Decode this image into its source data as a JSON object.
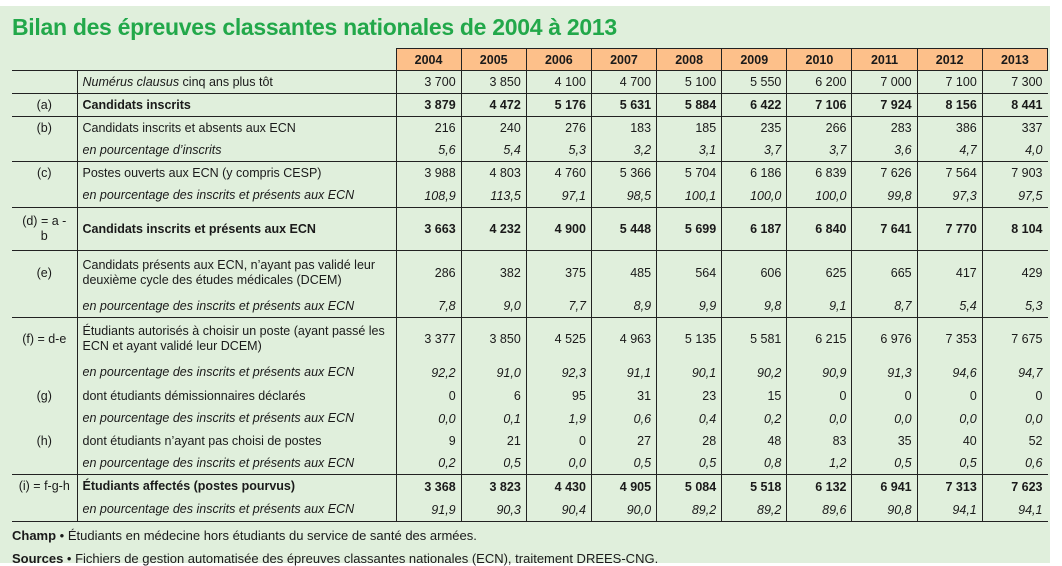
{
  "title": "Bilan des épreuves classantes nationales de 2004 à 2013",
  "years": [
    "2004",
    "2005",
    "2006",
    "2007",
    "2008",
    "2009",
    "2010",
    "2011",
    "2012",
    "2013"
  ],
  "rows": [
    {
      "label": "",
      "desc": "Numérus clausus cinq ans plus tôt",
      "style": "mixed",
      "values": [
        "3 700",
        "3 850",
        "4 100",
        "4 700",
        "5 100",
        "5 550",
        "6 200",
        "7 000",
        "7 100",
        "7 300"
      ]
    },
    {
      "label": "(a)",
      "desc": "Candidats inscrits",
      "style": "bold",
      "values": [
        "3 879",
        "4 472",
        "5 176",
        "5 631",
        "5 884",
        "6 422",
        "7 106",
        "7 924",
        "8 156",
        "8 441"
      ]
    },
    {
      "label": "(b)",
      "desc": "Candidats inscrits et absents aux ECN",
      "style": "normal",
      "values": [
        "216",
        "240",
        "276",
        "183",
        "185",
        "235",
        "266",
        "283",
        "386",
        "337"
      ]
    },
    {
      "label": "",
      "desc": "en pourcentage d’inscrits",
      "style": "ital",
      "values": [
        "5,6",
        "5,4",
        "5,3",
        "3,2",
        "3,1",
        "3,7",
        "3,7",
        "3,6",
        "4,7",
        "4,0"
      ]
    },
    {
      "label": "(c)",
      "desc": "Postes ouverts aux ECN (y compris CESP)",
      "style": "normal",
      "values": [
        "3 988",
        "4 803",
        "4 760",
        "5 366",
        "5 704",
        "6 186",
        "6 839",
        "7 626",
        "7 564",
        "7 903"
      ]
    },
    {
      "label": "",
      "desc": "en pourcentage des inscrits et présents aux ECN",
      "style": "ital",
      "values": [
        "108,9",
        "113,5",
        "97,1",
        "98,5",
        "100,1",
        "100,0",
        "100,0",
        "99,8",
        "97,3",
        "97,5"
      ]
    },
    {
      "label": "(d) = a - b",
      "desc": "Candidats inscrits et présents aux ECN",
      "style": "bold",
      "values": [
        "3 663",
        "4 232",
        "4 900",
        "5 448",
        "5 699",
        "6 187",
        "6 840",
        "7 641",
        "7 770",
        "8 104"
      ]
    },
    {
      "label": "(e)",
      "desc": "Candidats présents aux ECN, n’ayant pas validé leur deuxième cycle des études médicales (DCEM)",
      "style": "normal",
      "values": [
        "286",
        "382",
        "375",
        "485",
        "564",
        "606",
        "625",
        "665",
        "417",
        "429"
      ]
    },
    {
      "label": "",
      "desc": "en pourcentage des inscrits et présents aux ECN",
      "style": "ital",
      "values": [
        "7,8",
        "9,0",
        "7,7",
        "8,9",
        "9,9",
        "9,8",
        "9,1",
        "8,7",
        "5,4",
        "5,3"
      ]
    },
    {
      "label": "(f) = d-e",
      "desc": "Étudiants autorisés à choisir un poste (ayant passé les ECN et ayant validé leur DCEM)",
      "style": "normal",
      "values": [
        "3 377",
        "3 850",
        "4 525",
        "4 963",
        "5 135",
        "5 581",
        "6 215",
        "6 976",
        "7 353",
        "7 675"
      ]
    },
    {
      "label": "",
      "desc": "en pourcentage des inscrits et présents aux ECN",
      "style": "ital",
      "values": [
        "92,2",
        "91,0",
        "92,3",
        "91,1",
        "90,1",
        "90,2",
        "90,9",
        "91,3",
        "94,6",
        "94,7"
      ]
    },
    {
      "label": "(g)",
      "desc": "dont étudiants démissionnaires déclarés",
      "style": "normal",
      "values": [
        "0",
        "6",
        "95",
        "31",
        "23",
        "15",
        "0",
        "0",
        "0",
        "0"
      ]
    },
    {
      "label": "",
      "desc": "en pourcentage des inscrits et présents aux ECN",
      "style": "ital",
      "values": [
        "0,0",
        "0,1",
        "1,9",
        "0,6",
        "0,4",
        "0,2",
        "0,0",
        "0,0",
        "0,0",
        "0,0"
      ]
    },
    {
      "label": "(h)",
      "desc": "dont étudiants n’ayant pas choisi de postes",
      "style": "normal",
      "values": [
        "9",
        "21",
        "0",
        "27",
        "28",
        "48",
        "83",
        "35",
        "40",
        "52"
      ]
    },
    {
      "label": "",
      "desc": "en pourcentage des inscrits et présents aux ECN",
      "style": "ital",
      "values": [
        "0,2",
        "0,5",
        "0,0",
        "0,5",
        "0,5",
        "0,8",
        "1,2",
        "0,5",
        "0,5",
        "0,6"
      ]
    },
    {
      "label": "(i) = f-g-h",
      "desc": "Étudiants affectés (postes pourvus)",
      "style": "bold",
      "values": [
        "3 368",
        "3 823",
        "4 430",
        "4 905",
        "5 084",
        "5 518",
        "6 132",
        "6 941",
        "7 313",
        "7 623"
      ]
    },
    {
      "label": "",
      "desc": "en pourcentage des inscrits et présents aux ECN",
      "style": "ital",
      "values": [
        "91,9",
        "90,3",
        "90,4",
        "90,0",
        "89,2",
        "89,2",
        "89,6",
        "90,8",
        "94,1",
        "94,1"
      ]
    }
  ],
  "notes": {
    "champ_label": "Champ",
    "champ_text": " • Étudiants en médecine hors étudiants du service de santé des armées.",
    "sources_label": "Sources",
    "sources_text": " • Fichiers de gestion automatisée des épreuves classantes nationales (ECN), traitement DREES-CNG."
  }
}
